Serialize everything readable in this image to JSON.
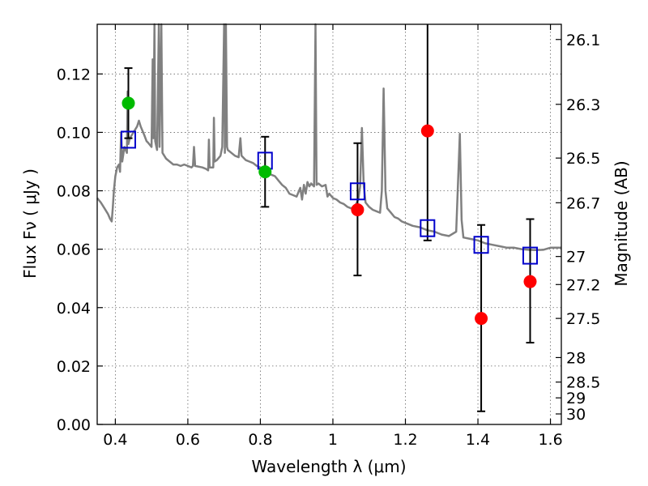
{
  "chart_data": {
    "type": "scatter",
    "title": "",
    "xlabel": "Wavelength  λ (μm)",
    "ylabel": "Flux  Fν  ( μJy )",
    "y2label": "Magnitude (AB)",
    "xlim": [
      0.35,
      1.63
    ],
    "ylim": [
      0.0,
      0.137
    ],
    "grid": true,
    "x_ticks": [
      0.4,
      0.6,
      0.8,
      1.0,
      1.2,
      1.4,
      1.6
    ],
    "x_tick_labels": [
      "0.4",
      "0.6",
      "0.8",
      "1",
      "1.2",
      "1.4",
      "1.6"
    ],
    "y_ticks": [
      0.0,
      0.02,
      0.04,
      0.06,
      0.08,
      0.1,
      0.12
    ],
    "y_tick_labels": [
      "0.00",
      "0.02",
      "0.04",
      "0.06",
      "0.08",
      "0.10",
      "0.12"
    ],
    "y2_ticks": [
      {
        "label": "26.1",
        "flux": 0.1318
      },
      {
        "label": "26.3",
        "flux": 0.1096
      },
      {
        "label": "26.5",
        "flux": 0.0912
      },
      {
        "label": "26.7",
        "flux": 0.0759
      },
      {
        "label": "27",
        "flux": 0.0575
      },
      {
        "label": "27.2",
        "flux": 0.0479
      },
      {
        "label": "27.5",
        "flux": 0.0363
      },
      {
        "label": "28",
        "flux": 0.0229
      },
      {
        "label": "28.5",
        "flux": 0.0145
      },
      {
        "label": "29",
        "flux": 0.0091
      },
      {
        "label": "30",
        "flux": 0.0036
      }
    ],
    "colors": {
      "spectrum": "#808080",
      "model_box": "#0000cc",
      "measured": "#ff0000",
      "green_points": "#00bb00",
      "error_bar": "#000000"
    },
    "series": [
      {
        "type": "line",
        "points": [
          [
            0.35,
            0.0775
          ],
          [
            0.36,
            0.076
          ],
          [
            0.37,
            0.074
          ],
          [
            0.38,
            0.072
          ],
          [
            0.385,
            0.0705
          ],
          [
            0.39,
            0.0695
          ],
          [
            0.393,
            0.074
          ],
          [
            0.396,
            0.08
          ],
          [
            0.4,
            0.085
          ],
          [
            0.405,
            0.088
          ],
          [
            0.41,
            0.089
          ],
          [
            0.413,
            0.0865
          ],
          [
            0.416,
            0.1
          ],
          [
            0.419,
            0.09
          ],
          [
            0.425,
            0.095
          ],
          [
            0.432,
            0.093
          ],
          [
            0.434,
            0.114
          ],
          [
            0.436,
            0.096
          ],
          [
            0.44,
            0.098
          ],
          [
            0.45,
            0.1
          ],
          [
            0.46,
            0.102
          ],
          [
            0.465,
            0.104
          ],
          [
            0.47,
            0.102
          ],
          [
            0.48,
            0.099
          ],
          [
            0.486,
            0.097
          ],
          [
            0.49,
            0.0965
          ],
          [
            0.5,
            0.095
          ],
          [
            0.503,
            0.125
          ],
          [
            0.505,
            0.098
          ],
          [
            0.508,
            0.137
          ],
          [
            0.51,
            0.097
          ],
          [
            0.515,
            0.094
          ],
          [
            0.52,
            0.137
          ],
          [
            0.522,
            0.095
          ],
          [
            0.527,
            0.137
          ],
          [
            0.53,
            0.093
          ],
          [
            0.54,
            0.091
          ],
          [
            0.55,
            0.09
          ],
          [
            0.56,
            0.089
          ],
          [
            0.57,
            0.089
          ],
          [
            0.58,
            0.0885
          ],
          [
            0.59,
            0.089
          ],
          [
            0.6,
            0.0885
          ],
          [
            0.61,
            0.088
          ],
          [
            0.614,
            0.0885
          ],
          [
            0.617,
            0.095
          ],
          [
            0.62,
            0.0885
          ],
          [
            0.64,
            0.088
          ],
          [
            0.65,
            0.0875
          ],
          [
            0.656,
            0.087
          ],
          [
            0.658,
            0.0975
          ],
          [
            0.66,
            0.088
          ],
          [
            0.67,
            0.088
          ],
          [
            0.672,
            0.105
          ],
          [
            0.674,
            0.09
          ],
          [
            0.68,
            0.0905
          ],
          [
            0.69,
            0.092
          ],
          [
            0.695,
            0.095
          ],
          [
            0.7,
            0.137
          ],
          [
            0.702,
            0.093
          ],
          [
            0.705,
            0.137
          ],
          [
            0.708,
            0.095
          ],
          [
            0.71,
            0.094
          ],
          [
            0.72,
            0.093
          ],
          [
            0.73,
            0.092
          ],
          [
            0.74,
            0.0915
          ],
          [
            0.745,
            0.098
          ],
          [
            0.748,
            0.092
          ],
          [
            0.76,
            0.0905
          ],
          [
            0.77,
            0.09
          ],
          [
            0.78,
            0.0895
          ],
          [
            0.79,
            0.0885
          ],
          [
            0.8,
            0.088
          ],
          [
            0.81,
            0.087
          ],
          [
            0.82,
            0.086
          ],
          [
            0.83,
            0.0855
          ],
          [
            0.84,
            0.085
          ],
          [
            0.85,
            0.0835
          ],
          [
            0.86,
            0.082
          ],
          [
            0.87,
            0.081
          ],
          [
            0.88,
            0.079
          ],
          [
            0.89,
            0.0785
          ],
          [
            0.9,
            0.078
          ],
          [
            0.91,
            0.081
          ],
          [
            0.915,
            0.077
          ],
          [
            0.92,
            0.082
          ],
          [
            0.925,
            0.079
          ],
          [
            0.93,
            0.083
          ],
          [
            0.935,
            0.0815
          ],
          [
            0.94,
            0.0825
          ],
          [
            0.948,
            0.0815
          ],
          [
            0.952,
            0.137
          ],
          [
            0.955,
            0.082
          ],
          [
            0.96,
            0.0825
          ],
          [
            0.97,
            0.0815
          ],
          [
            0.98,
            0.082
          ],
          [
            0.985,
            0.078
          ],
          [
            0.99,
            0.079
          ],
          [
            1.0,
            0.0775
          ],
          [
            1.01,
            0.077
          ],
          [
            1.02,
            0.076
          ],
          [
            1.03,
            0.0755
          ],
          [
            1.04,
            0.0745
          ],
          [
            1.05,
            0.074
          ],
          [
            1.06,
            0.0745
          ],
          [
            1.07,
            0.077
          ],
          [
            1.075,
            0.0815
          ],
          [
            1.08,
            0.1015
          ],
          [
            1.085,
            0.082
          ],
          [
            1.09,
            0.076
          ],
          [
            1.1,
            0.0745
          ],
          [
            1.11,
            0.0735
          ],
          [
            1.12,
            0.073
          ],
          [
            1.13,
            0.0725
          ],
          [
            1.135,
            0.08
          ],
          [
            1.14,
            0.115
          ],
          [
            1.145,
            0.08
          ],
          [
            1.15,
            0.074
          ],
          [
            1.16,
            0.0725
          ],
          [
            1.17,
            0.071
          ],
          [
            1.18,
            0.0705
          ],
          [
            1.19,
            0.0695
          ],
          [
            1.2,
            0.069
          ],
          [
            1.22,
            0.068
          ],
          [
            1.24,
            0.0675
          ],
          [
            1.26,
            0.0665
          ],
          [
            1.28,
            0.066
          ],
          [
            1.3,
            0.065
          ],
          [
            1.32,
            0.0645
          ],
          [
            1.34,
            0.066
          ],
          [
            1.35,
            0.0995
          ],
          [
            1.355,
            0.07
          ],
          [
            1.36,
            0.064
          ],
          [
            1.38,
            0.0635
          ],
          [
            1.4,
            0.063
          ],
          [
            1.42,
            0.062
          ],
          [
            1.44,
            0.0615
          ],
          [
            1.46,
            0.061
          ],
          [
            1.48,
            0.0605
          ],
          [
            1.5,
            0.0605
          ],
          [
            1.52,
            0.06
          ],
          [
            1.54,
            0.0598
          ],
          [
            1.56,
            0.0597
          ],
          [
            1.58,
            0.0598
          ],
          [
            1.6,
            0.0605
          ],
          [
            1.63,
            0.0605
          ]
        ]
      },
      {
        "type": "scatter",
        "marker": "open-square",
        "points": [
          [
            0.436,
            0.0975
          ],
          [
            0.813,
            0.0903
          ],
          [
            1.068,
            0.0798
          ],
          [
            1.261,
            0.0672
          ],
          [
            1.409,
            0.0615
          ],
          [
            1.544,
            0.0578
          ]
        ]
      },
      {
        "type": "scatter",
        "marker": "circle",
        "points": [
          [
            0.436,
            0.11
          ],
          [
            0.813,
            0.0865
          ]
        ]
      },
      {
        "type": "scatter",
        "marker": "circle",
        "points": [
          [
            1.068,
            0.0735
          ],
          [
            1.261,
            0.1005
          ],
          [
            1.409,
            0.0363
          ],
          [
            1.544,
            0.0489
          ]
        ]
      },
      {
        "type": "errorbar",
        "points": [
          {
            "x": 0.436,
            "low": 0.098,
            "high": 0.122
          },
          {
            "x": 0.813,
            "low": 0.0745,
            "high": 0.0985
          },
          {
            "x": 1.068,
            "low": 0.051,
            "high": 0.0963
          },
          {
            "x": 1.261,
            "low": 0.063,
            "high": 0.137
          },
          {
            "x": 1.409,
            "low": 0.0045,
            "high": 0.0683
          },
          {
            "x": 1.544,
            "low": 0.028,
            "high": 0.0703
          }
        ]
      }
    ]
  }
}
